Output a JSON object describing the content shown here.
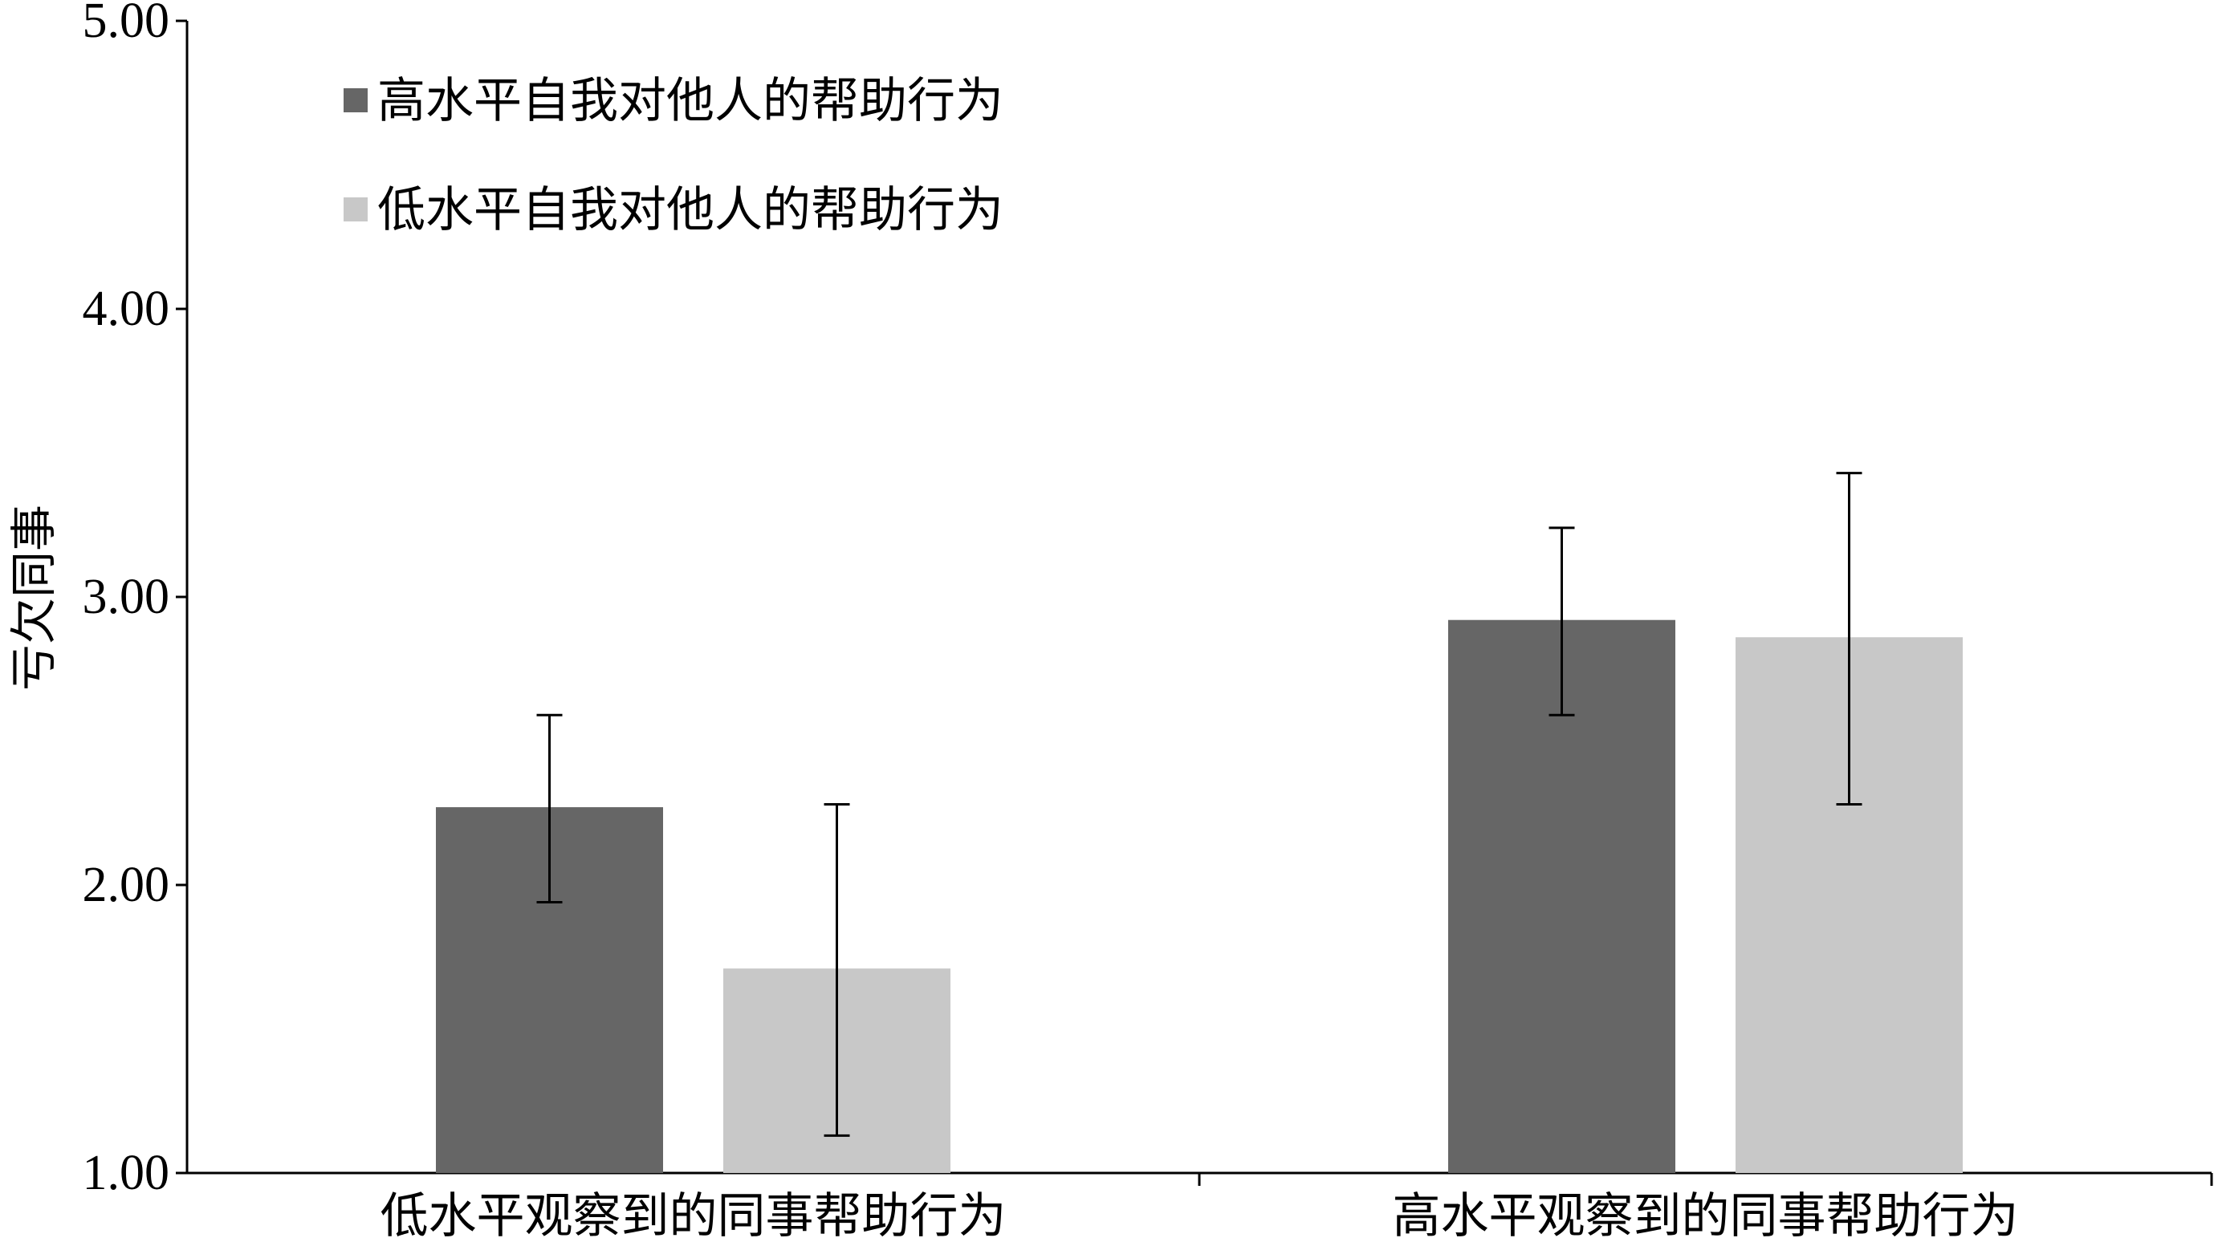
{
  "chart_data": {
    "type": "bar",
    "title": "",
    "xlabel": "",
    "ylabel": "亏欠同事",
    "ylim": [
      1.0,
      5.0
    ],
    "yticks": [
      "1.00",
      "2.00",
      "3.00",
      "4.00",
      "5.00"
    ],
    "categories": [
      "低水平观察到的同事帮助行为",
      "高水平观察到的同事帮助行为"
    ],
    "series": [
      {
        "name": "高水平自我对他人的帮助行为",
        "color": "#666666",
        "values": [
          2.27,
          2.92
        ],
        "error_low": [
          1.94,
          2.59
        ],
        "error_high": [
          2.59,
          3.24
        ]
      },
      {
        "name": "低水平自我对他人的帮助行为",
        "color": "#c8c8c8",
        "values": [
          1.71,
          2.86
        ],
        "error_low": [
          1.13,
          2.28
        ],
        "error_high": [
          2.28,
          3.43
        ]
      }
    ],
    "legend_position": "top-left",
    "grid": false
  }
}
